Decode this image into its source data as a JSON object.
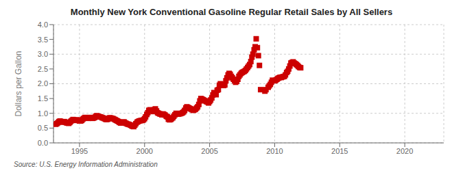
{
  "chart_data": {
    "type": "scatter",
    "title": "Monthly New York Conventional Gasoline Regular Retail Sales by All Sellers",
    "ylabel": "Dollars per Gallon",
    "annotations": [
      "Source: U.S. Energy Information Administration"
    ],
    "color": "#cc0000",
    "marker": "square",
    "grid": true,
    "xlim": [
      1993.0,
      2023.0
    ],
    "ylim": [
      0.0,
      4.0
    ],
    "xticks": [
      1995,
      2000,
      2005,
      2010,
      2015,
      2020
    ],
    "yticks": [
      {
        "value": 0,
        "label": "0.0"
      },
      0.5,
      {
        "value": 1,
        "label": "1.0"
      },
      1.5,
      {
        "value": 2,
        "label": "2.0"
      },
      2.5,
      {
        "value": 3,
        "label": "3.0"
      },
      3.5,
      {
        "value": 4,
        "label": "4.0"
      }
    ],
    "x": [
      1993.17,
      1993.25,
      1993.33,
      1993.42,
      1993.5,
      1993.58,
      1993.67,
      1993.75,
      1993.83,
      1993.92,
      1994.0,
      1994.08,
      1994.17,
      1994.25,
      1994.33,
      1994.42,
      1994.5,
      1994.58,
      1994.67,
      1994.75,
      1994.83,
      1994.92,
      1995.0,
      1995.08,
      1995.17,
      1995.25,
      1995.33,
      1995.42,
      1995.5,
      1995.58,
      1995.67,
      1995.75,
      1995.83,
      1995.92,
      1996.0,
      1996.08,
      1996.17,
      1996.25,
      1996.33,
      1996.42,
      1996.5,
      1996.58,
      1996.67,
      1996.75,
      1996.83,
      1996.92,
      1997.0,
      1997.08,
      1997.17,
      1997.25,
      1997.33,
      1997.42,
      1997.5,
      1997.58,
      1997.67,
      1997.75,
      1997.83,
      1997.92,
      1998.0,
      1998.08,
      1998.17,
      1998.25,
      1998.33,
      1998.42,
      1998.5,
      1998.58,
      1998.67,
      1998.75,
      1998.83,
      1998.92,
      1999.0,
      1999.08,
      1999.17,
      1999.25,
      1999.33,
      1999.42,
      1999.5,
      1999.58,
      1999.67,
      1999.75,
      1999.83,
      1999.92,
      2000.0,
      2000.08,
      2000.17,
      2000.25,
      2000.33,
      2000.42,
      2000.5,
      2000.58,
      2000.67,
      2000.75,
      2000.83,
      2000.92,
      2001.0,
      2001.08,
      2001.17,
      2001.25,
      2001.33,
      2001.42,
      2001.5,
      2001.58,
      2001.67,
      2001.75,
      2001.83,
      2001.92,
      2002.0,
      2002.08,
      2002.17,
      2002.25,
      2002.33,
      2002.42,
      2002.5,
      2002.58,
      2002.67,
      2002.75,
      2002.83,
      2002.92,
      2003.0,
      2003.08,
      2003.17,
      2003.25,
      2003.33,
      2003.42,
      2003.5,
      2003.58,
      2003.67,
      2003.75,
      2003.83,
      2003.92,
      2004.0,
      2004.08,
      2004.17,
      2004.25,
      2004.33,
      2004.42,
      2004.5,
      2004.58,
      2004.67,
      2004.75,
      2004.83,
      2004.92,
      2005.0,
      2005.08,
      2005.17,
      2005.25,
      2005.33,
      2005.42,
      2005.5,
      2005.58,
      2005.67,
      2005.75,
      2005.83,
      2005.92,
      2006.0,
      2006.08,
      2006.17,
      2006.25,
      2006.33,
      2006.42,
      2006.5,
      2006.58,
      2006.67,
      2006.75,
      2006.83,
      2006.92,
      2007.0,
      2007.08,
      2007.17,
      2007.25,
      2007.33,
      2007.42,
      2007.5,
      2007.58,
      2007.67,
      2007.75,
      2007.83,
      2007.92,
      2008.0,
      2008.08,
      2008.17,
      2008.25,
      2008.33,
      2008.42,
      2008.5,
      2008.58,
      2008.67,
      2008.75,
      2008.83,
      2008.92,
      2009.25,
      2009.33,
      2009.5,
      2009.58,
      2009.67,
      2009.75,
      2009.83,
      2010.0,
      2010.08,
      2010.17,
      2010.25,
      2010.33,
      2010.42,
      2010.5,
      2010.58,
      2010.67,
      2010.75,
      2010.83,
      2010.92,
      2011.0,
      2011.08,
      2011.17,
      2011.25,
      2011.33,
      2011.42,
      2011.5,
      2011.58,
      2011.67,
      2011.75,
      2011.83,
      2011.92,
      2012.0
    ],
    "values": [
      0.63,
      0.65,
      0.68,
      0.72,
      0.74,
      0.72,
      0.7,
      0.71,
      0.72,
      0.7,
      0.68,
      0.67,
      0.66,
      0.69,
      0.73,
      0.76,
      0.79,
      0.77,
      0.76,
      0.77,
      0.78,
      0.76,
      0.74,
      0.74,
      0.76,
      0.8,
      0.83,
      0.86,
      0.85,
      0.84,
      0.83,
      0.84,
      0.86,
      0.85,
      0.83,
      0.84,
      0.86,
      0.9,
      0.92,
      0.9,
      0.89,
      0.88,
      0.87,
      0.85,
      0.84,
      0.82,
      0.8,
      0.79,
      0.8,
      0.83,
      0.85,
      0.84,
      0.83,
      0.82,
      0.8,
      0.78,
      0.76,
      0.74,
      0.72,
      0.69,
      0.67,
      0.68,
      0.7,
      0.71,
      0.68,
      0.66,
      0.64,
      0.63,
      0.62,
      0.6,
      0.58,
      0.56,
      0.55,
      0.6,
      0.65,
      0.7,
      0.72,
      0.74,
      0.75,
      0.76,
      0.76,
      0.78,
      0.82,
      0.88,
      0.96,
      1.02,
      1.1,
      1.12,
      1.1,
      1.08,
      1.06,
      1.12,
      1.15,
      1.08,
      1.02,
      1.0,
      0.98,
      0.97,
      0.95,
      0.98,
      0.96,
      0.94,
      0.9,
      0.88,
      0.8,
      0.78,
      0.79,
      0.82,
      0.85,
      0.9,
      0.95,
      1.0,
      0.98,
      0.97,
      0.98,
      0.99,
      1.0,
      1.02,
      1.05,
      1.1,
      1.18,
      1.22,
      1.2,
      1.18,
      1.16,
      1.14,
      1.12,
      1.1,
      1.12,
      1.14,
      1.18,
      1.22,
      1.3,
      1.42,
      1.5,
      1.48,
      1.46,
      1.44,
      1.42,
      1.4,
      1.38,
      1.35,
      1.4,
      1.45,
      1.52,
      1.62,
      1.7,
      1.65,
      1.63,
      1.78,
      1.8,
      1.95,
      2.0,
      1.98,
      1.96,
      1.94,
      1.96,
      2.1,
      2.2,
      2.3,
      2.35,
      2.32,
      2.25,
      2.2,
      2.15,
      2.1,
      2.05,
      2.08,
      2.15,
      2.25,
      2.3,
      2.35,
      2.38,
      2.4,
      2.42,
      2.45,
      2.5,
      2.55,
      2.6,
      2.65,
      2.75,
      2.9,
      3.0,
      3.15,
      3.25,
      3.52,
      3.22,
      2.95,
      2.62,
      1.8,
      1.75,
      1.8,
      1.88,
      1.93,
      1.98,
      2.05,
      2.12,
      2.1,
      2.12,
      2.15,
      2.18,
      2.2,
      2.22,
      2.21,
      2.23,
      2.24,
      2.25,
      2.3,
      2.38,
      2.42,
      2.5,
      2.6,
      2.7,
      2.72,
      2.74,
      2.7,
      2.68,
      2.65,
      2.62,
      2.58,
      2.55,
      2.54
    ]
  }
}
